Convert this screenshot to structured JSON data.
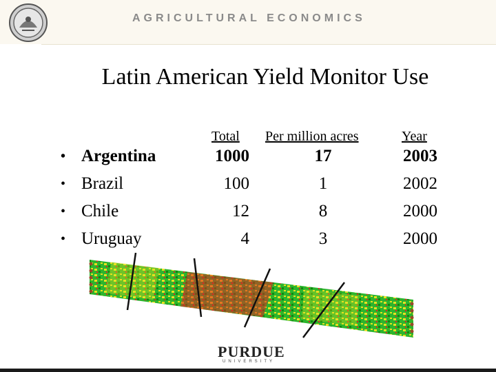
{
  "header": {
    "brand": "AGRICULTURAL ECONOMICS"
  },
  "slide": {
    "title": "Latin American Yield Monitor Use"
  },
  "table": {
    "columns": {
      "total": "Total",
      "per_million": "Per million acres",
      "year": "Year"
    },
    "rows": [
      {
        "country": "Argentina",
        "total": "1000",
        "per_million": "17",
        "year": "2003"
      },
      {
        "country": "Brazil",
        "total": "100",
        "per_million": "1",
        "year": "2002"
      },
      {
        "country": "Chile",
        "total": "12",
        "per_million": "8",
        "year": "2000"
      },
      {
        "country": "Uruguay",
        "total": "4",
        "per_million": "3",
        "year": "2000"
      }
    ],
    "bullet": "•"
  },
  "logo": {
    "name": "PURDUE",
    "sub": "UNIVERSITY"
  },
  "colors": {
    "yield_high": "#1ea51e",
    "yield_mid": "#e8e020",
    "yield_low": "#e02020"
  }
}
